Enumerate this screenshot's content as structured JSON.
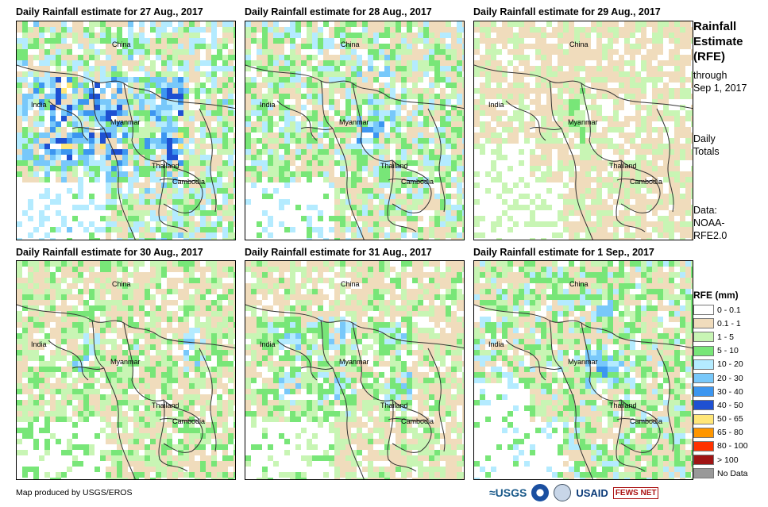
{
  "panels": [
    {
      "title": "Daily Rainfall estimate for 27 Aug., 2017",
      "intensity": 0.85,
      "seed": 27
    },
    {
      "title": "Daily Rainfall estimate for 28 Aug., 2017",
      "intensity": 0.8,
      "seed": 28
    },
    {
      "title": "Daily Rainfall estimate for 29 Aug., 2017",
      "intensity": 0.45,
      "seed": 29
    },
    {
      "title": "Daily Rainfall estimate for 30 Aug., 2017",
      "intensity": 0.6,
      "seed": 30
    },
    {
      "title": "Daily Rainfall estimate for 31 Aug., 2017",
      "intensity": 0.55,
      "seed": 31
    },
    {
      "title": "Daily Rainfall estimate for 1  Sep., 2017",
      "intensity": 0.75,
      "seed": 1
    }
  ],
  "places": [
    "China",
    "India",
    "Myanmar",
    "Thailand",
    "Cambodia"
  ],
  "side": {
    "title_lines": [
      "Rainfall",
      "Estimate",
      "(RFE)"
    ],
    "through": "through",
    "date": "Sep 1, 2017",
    "daily": "Daily",
    "totals": "Totals",
    "data_label": "Data:",
    "source1": "NOAA-",
    "source2": "RFE2.0"
  },
  "legend": {
    "title": "RFE (mm)",
    "items": [
      {
        "label": "0 - 0.1",
        "color": "#ffffff"
      },
      {
        "label": "0.1 - 1",
        "color": "#f0dcbc"
      },
      {
        "label": "1 - 5",
        "color": "#c8f5b4"
      },
      {
        "label": "5 - 10",
        "color": "#78e678"
      },
      {
        "label": "10 - 20",
        "color": "#b4ebff"
      },
      {
        "label": "20 - 30",
        "color": "#78c8fa"
      },
      {
        "label": "30 - 40",
        "color": "#3c96f0"
      },
      {
        "label": "40 - 50",
        "color": "#1e50d2"
      },
      {
        "label": "50 - 65",
        "color": "#ffe678"
      },
      {
        "label": "65 - 80",
        "color": "#ff9600"
      },
      {
        "label": "80 - 100",
        "color": "#ff3200"
      },
      {
        "label": "> 100",
        "color": "#a01414"
      },
      {
        "label": "No Data",
        "color": "#999999"
      }
    ]
  },
  "credit": "Map produced by USGS/EROS",
  "logos": {
    "usgs": "≈USGS",
    "usaid": "USAID",
    "fews": "FEWS NET"
  }
}
